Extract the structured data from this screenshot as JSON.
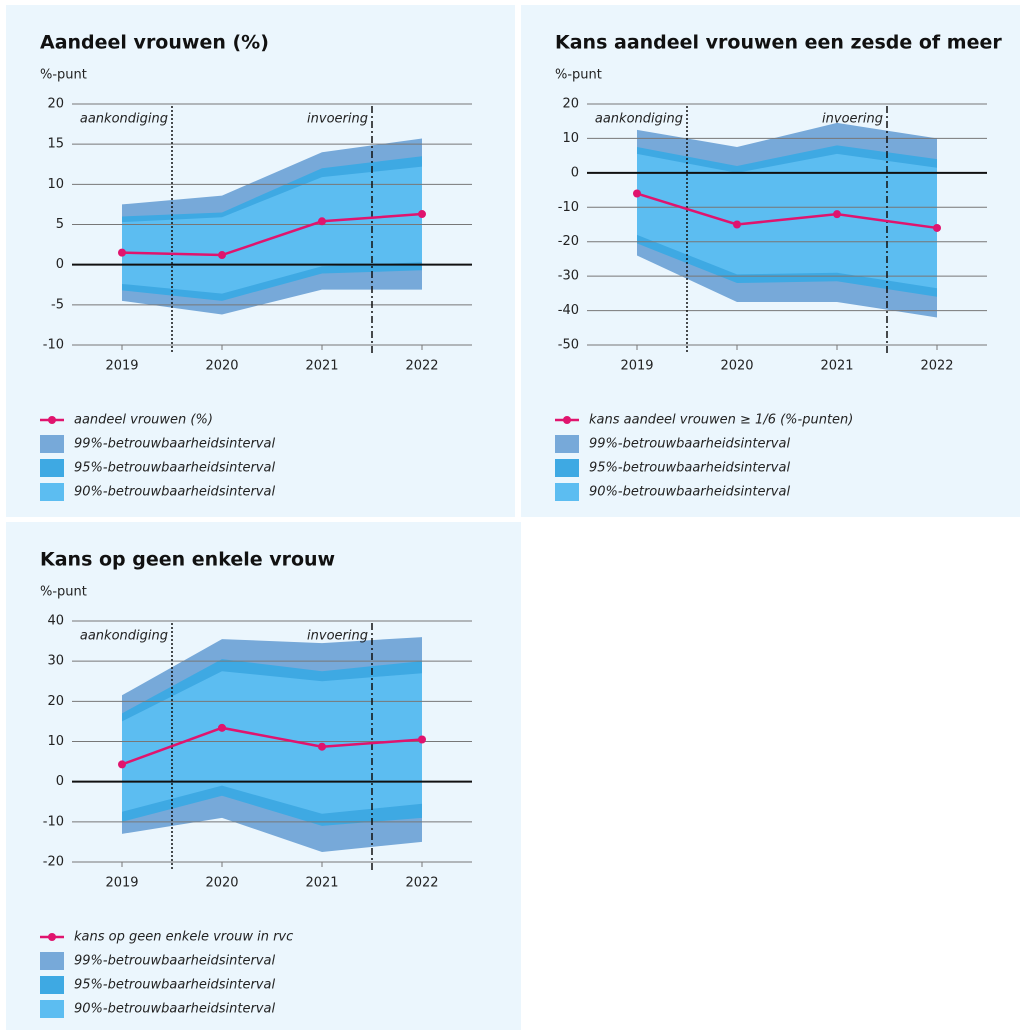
{
  "chart_data": [
    {
      "type": "line",
      "title": "Aandeel vrouwen (%)",
      "y_label": "%-punt",
      "x": [
        2019,
        2020,
        2021,
        2022
      ],
      "xlim": [
        2018.5,
        2022.5
      ],
      "xticks": [
        2019,
        2020,
        2021,
        2022
      ],
      "ylim": [
        -10,
        20
      ],
      "yticks": [
        -10,
        -5,
        0,
        5,
        10,
        15,
        20
      ],
      "grid": true,
      "vlines": [
        {
          "x": 2019.5,
          "label": "aankondiging",
          "style": "dotted"
        },
        {
          "x": 2021.5,
          "label": "invoering",
          "style": "dashdot"
        }
      ],
      "series": [
        {
          "name": "aandeel vrouwen (%)",
          "color": "#e0146e",
          "values": [
            1.5,
            1.2,
            5.4,
            6.3
          ]
        }
      ],
      "bands": [
        {
          "name": "99%-betrouwbaarheidsinterval",
          "color": "#77a9d9",
          "upper": [
            7.5,
            8.6,
            14,
            15.7
          ],
          "lower": [
            -4.5,
            -6.2,
            -3.1,
            -3.1
          ]
        },
        {
          "name": "95%-betrouwbaarheidsinterval",
          "color": "#3ea9e3",
          "upper": [
            6,
            6.5,
            12,
            13.5
          ],
          "lower": [
            -3.2,
            -4.5,
            -1.1,
            -0.7
          ]
        },
        {
          "name": "90%-betrouwbaarheidsinterval",
          "color": "#5cbdf1",
          "upper": [
            5.3,
            5.9,
            10.9,
            12.2
          ],
          "lower": [
            -2.4,
            -3.6,
            -0.2,
            0.3
          ]
        }
      ]
    },
    {
      "type": "line",
      "title": "Kans aandeel vrouwen een zesde of meer",
      "y_label": "%-punt",
      "x": [
        2019,
        2020,
        2021,
        2022
      ],
      "xlim": [
        2018.5,
        2022.5
      ],
      "xticks": [
        2019,
        2020,
        2021,
        2022
      ],
      "ylim": [
        -50,
        20
      ],
      "yticks": [
        -50,
        -40,
        -30,
        -20,
        -10,
        0,
        10,
        20
      ],
      "grid": true,
      "vlines": [
        {
          "x": 2019.5,
          "label": "aankondiging",
          "style": "dotted"
        },
        {
          "x": 2021.5,
          "label": "invoering",
          "style": "dashdot"
        }
      ],
      "series": [
        {
          "name": "kans aandeel vrouwen ≥ 1/6 (%-punten)",
          "color": "#e0146e",
          "values": [
            -6,
            -15,
            -12,
            -16
          ]
        }
      ],
      "bands": [
        {
          "name": "99%-betrouwbaarheidsinterval",
          "color": "#77a9d9",
          "upper": [
            12.5,
            7.5,
            14.5,
            10
          ],
          "lower": [
            -24,
            -37.5,
            -37.5,
            -42
          ]
        },
        {
          "name": "95%-betrouwbaarheidsinterval",
          "color": "#3ea9e3",
          "upper": [
            7.5,
            2,
            8,
            4
          ],
          "lower": [
            -20.5,
            -32,
            -31.5,
            -36
          ]
        },
        {
          "name": "90%-betrouwbaarheidsinterval",
          "color": "#5cbdf1",
          "upper": [
            5.5,
            0,
            5.5,
            1.5
          ],
          "lower": [
            -18,
            -29.5,
            -29,
            -33.5
          ]
        }
      ]
    },
    {
      "type": "line",
      "title": "Kans op geen enkele vrouw",
      "y_label": "%-punt",
      "x": [
        2019,
        2020,
        2021,
        2022
      ],
      "xlim": [
        2018.5,
        2022.5
      ],
      "xticks": [
        2019,
        2020,
        2021,
        2022
      ],
      "ylim": [
        -20,
        40
      ],
      "yticks": [
        -20,
        -10,
        0,
        10,
        20,
        30,
        40
      ],
      "grid": true,
      "vlines": [
        {
          "x": 2019.5,
          "label": "aankondiging",
          "style": "dotted"
        },
        {
          "x": 2021.5,
          "label": "invoering",
          "style": "dashdot"
        }
      ],
      "series": [
        {
          "name": "kans op geen enkele vrouw in rvc",
          "color": "#e0146e",
          "values": [
            4.3,
            13.4,
            8.7,
            10.5
          ]
        }
      ],
      "bands": [
        {
          "name": "99%-betrouwbaarheidsinterval",
          "color": "#77a9d9",
          "upper": [
            21.5,
            35.5,
            34.5,
            36
          ],
          "lower": [
            -13,
            -9,
            -17.5,
            -15
          ]
        },
        {
          "name": "95%-betrouwbaarheidsinterval",
          "color": "#3ea9e3",
          "upper": [
            17,
            30.5,
            27.5,
            30
          ],
          "lower": [
            -10,
            -3.5,
            -11,
            -9
          ]
        },
        {
          "name": "90%-betrouwbaarheidsinterval",
          "color": "#5cbdf1",
          "upper": [
            15,
            27.5,
            25,
            27
          ],
          "lower": [
            -7.5,
            -1,
            -8,
            -5.5
          ]
        }
      ]
    }
  ]
}
